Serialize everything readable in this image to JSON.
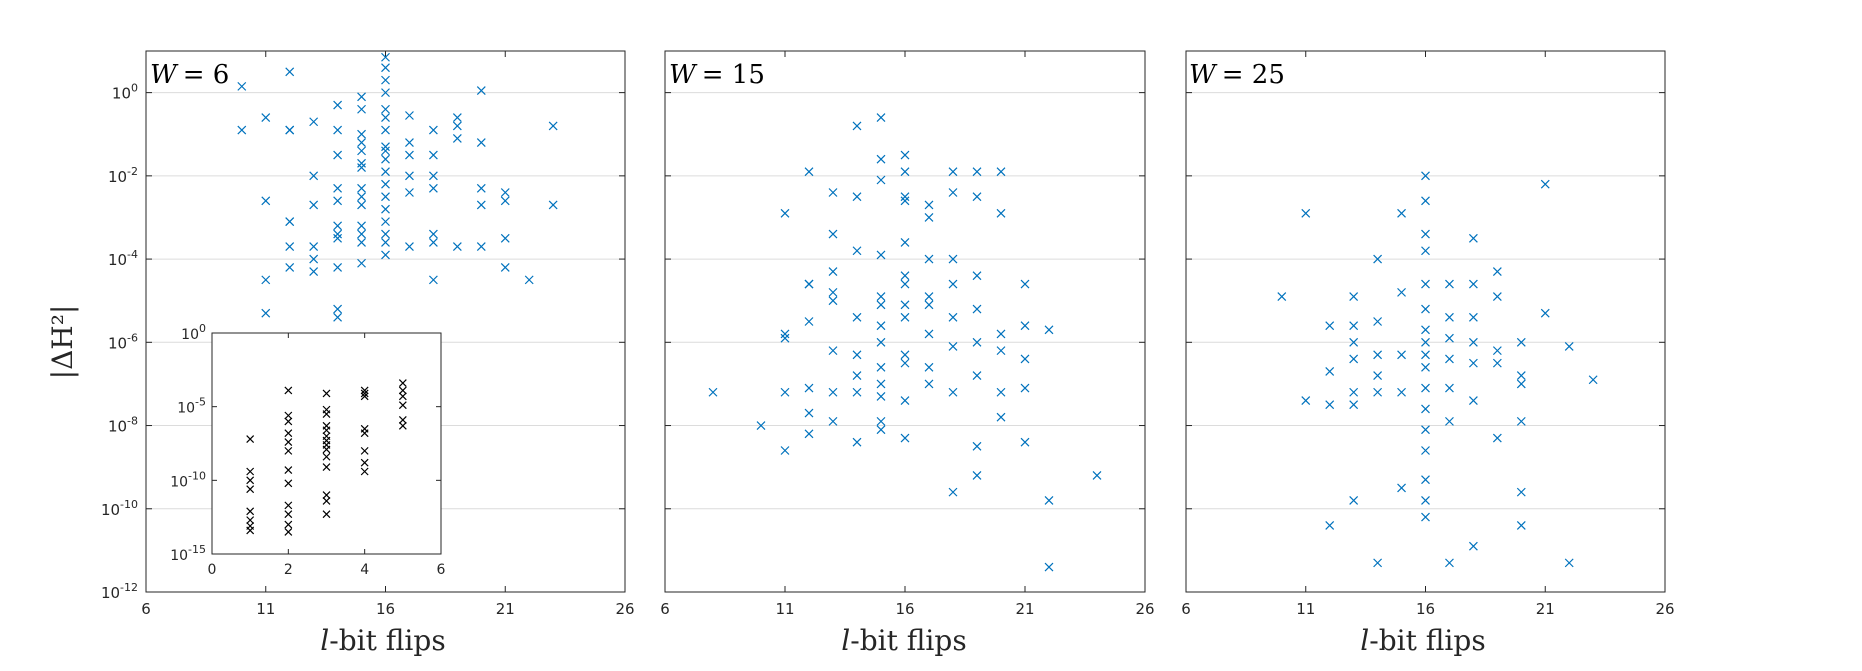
{
  "chart_data": [
    {
      "type": "scatter",
      "title": "W = 6",
      "title_var": "W",
      "title_value": "= 6",
      "xlabel": "-bit flips",
      "xlabel_var": "l",
      "ylabel": "|ΔH²|",
      "xlim": [
        6,
        26
      ],
      "ylim_log10": [
        -12,
        1
      ],
      "yscale": "log",
      "xticks": [
        "6",
        "11",
        "16",
        "21",
        "26"
      ],
      "yticks": [
        {
          "base": "10",
          "exp": "0"
        },
        {
          "base": "10",
          "exp": "-2"
        },
        {
          "base": "10",
          "exp": "-4"
        },
        {
          "base": "10",
          "exp": "-6"
        },
        {
          "base": "10",
          "exp": "-8"
        },
        {
          "base": "10",
          "exp": "-10"
        },
        {
          "base": "10",
          "exp": "-12"
        }
      ],
      "grid": "horizontal",
      "marker": "x",
      "color": "#0072BD",
      "points_log10": [
        [
          10,
          -0.9
        ],
        [
          10,
          0.15
        ],
        [
          11,
          -0.6
        ],
        [
          11,
          -2.6
        ],
        [
          11,
          -4.5
        ],
        [
          11,
          -5.3
        ],
        [
          12,
          0.5
        ],
        [
          12,
          -0.9
        ],
        [
          12,
          -0.9
        ],
        [
          12,
          -3.1
        ],
        [
          12,
          -3.1
        ],
        [
          12,
          -3.7
        ],
        [
          12,
          -4.2
        ],
        [
          13,
          -0.7
        ],
        [
          13,
          -2
        ],
        [
          13,
          -2.7
        ],
        [
          13,
          -3.7
        ],
        [
          13,
          -4
        ],
        [
          13,
          -4.3
        ],
        [
          14,
          -0.3
        ],
        [
          14,
          -0.9
        ],
        [
          14,
          -1.5
        ],
        [
          14,
          -2.3
        ],
        [
          14,
          -2.6
        ],
        [
          14,
          -3.2
        ],
        [
          14,
          -3.4
        ],
        [
          14,
          -3.5
        ],
        [
          14,
          -4.2
        ],
        [
          14,
          -5.2
        ],
        [
          14,
          -5.4
        ],
        [
          15,
          -0.1
        ],
        [
          15,
          -0.4
        ],
        [
          15,
          -1
        ],
        [
          15,
          -1.2
        ],
        [
          15,
          -1.4
        ],
        [
          15,
          -1.7
        ],
        [
          15,
          -1.8
        ],
        [
          15,
          -2.3
        ],
        [
          15,
          -2.5
        ],
        [
          15,
          -2.7
        ],
        [
          15,
          -3.2
        ],
        [
          15,
          -3.4
        ],
        [
          15,
          -3.6
        ],
        [
          15,
          -4.1
        ],
        [
          16,
          0.85
        ],
        [
          16,
          0.6
        ],
        [
          16,
          0.3
        ],
        [
          16,
          0
        ],
        [
          16,
          -0.4
        ],
        [
          16,
          -0.6
        ],
        [
          16,
          -0.9
        ],
        [
          16,
          -1.3
        ],
        [
          16,
          -1.4
        ],
        [
          16,
          -1.6
        ],
        [
          16,
          -1.9
        ],
        [
          16,
          -2.2
        ],
        [
          16,
          -2.5
        ],
        [
          16,
          -2.8
        ],
        [
          16,
          -3.1
        ],
        [
          16,
          -3.4
        ],
        [
          16,
          -3.6
        ],
        [
          16,
          -3.9
        ],
        [
          17,
          -0.55
        ],
        [
          17,
          -1.2
        ],
        [
          17,
          -1.5
        ],
        [
          17,
          -2
        ],
        [
          17,
          -2.4
        ],
        [
          17,
          -3.7
        ],
        [
          18,
          -0.9
        ],
        [
          18,
          -1.5
        ],
        [
          18,
          -2
        ],
        [
          18,
          -2.3
        ],
        [
          18,
          -3.4
        ],
        [
          18,
          -3.6
        ],
        [
          18,
          -4.5
        ],
        [
          19,
          -0.6
        ],
        [
          19,
          -0.8
        ],
        [
          19,
          -1.1
        ],
        [
          19,
          -3.7
        ],
        [
          20,
          0.05
        ],
        [
          20,
          -1.2
        ],
        [
          20,
          -2.3
        ],
        [
          20,
          -2.7
        ],
        [
          20,
          -3.7
        ],
        [
          21,
          -2.4
        ],
        [
          21,
          -2.6
        ],
        [
          21,
          -3.5
        ],
        [
          21,
          -4.2
        ],
        [
          22,
          -4.5
        ],
        [
          23,
          -0.8
        ],
        [
          23,
          -2.7
        ]
      ],
      "inset": {
        "xlim": [
          0,
          6
        ],
        "ylim_log10": [
          -15,
          0
        ],
        "xticks": [
          "0",
          "2",
          "4",
          "6"
        ],
        "yticks": [
          {
            "base": "10",
            "exp": "0"
          },
          {
            "base": "10",
            "exp": "-5"
          },
          {
            "base": "10",
            "exp": "-10"
          },
          {
            "base": "10",
            "exp": "-15"
          }
        ],
        "color": "#000000",
        "points_log10": [
          [
            1,
            -7.2
          ],
          [
            1,
            -9.4
          ],
          [
            1,
            -10
          ],
          [
            1,
            -10.6
          ],
          [
            1,
            -12.1
          ],
          [
            1,
            -12.7
          ],
          [
            1,
            -13.1
          ],
          [
            1,
            -13.4
          ],
          [
            2,
            -3.9
          ],
          [
            2,
            -5.6
          ],
          [
            2,
            -6
          ],
          [
            2,
            -6.8
          ],
          [
            2,
            -7.4
          ],
          [
            2,
            -8
          ],
          [
            2,
            -9.3
          ],
          [
            2,
            -10.2
          ],
          [
            2,
            -11.7
          ],
          [
            2,
            -12.3
          ],
          [
            2,
            -13
          ],
          [
            2,
            -13.5
          ],
          [
            3,
            -4.1
          ],
          [
            3,
            -5.2
          ],
          [
            3,
            -5.5
          ],
          [
            3,
            -6.3
          ],
          [
            3,
            -6.6
          ],
          [
            3,
            -7
          ],
          [
            3,
            -7.3
          ],
          [
            3,
            -7.6
          ],
          [
            3,
            -7.9
          ],
          [
            3,
            -8.4
          ],
          [
            3,
            -9.1
          ],
          [
            3,
            -11
          ],
          [
            3,
            -11.4
          ],
          [
            3,
            -12.3
          ],
          [
            4,
            -3.9
          ],
          [
            4,
            -4.1
          ],
          [
            4,
            -4.3
          ],
          [
            4,
            -6.5
          ],
          [
            4,
            -6.8
          ],
          [
            4,
            -8
          ],
          [
            4,
            -8.8
          ],
          [
            4,
            -9.4
          ],
          [
            5,
            -3.4
          ],
          [
            5,
            -3.9
          ],
          [
            5,
            -4.3
          ],
          [
            5,
            -4.9
          ],
          [
            5,
            -5.9
          ],
          [
            5,
            -6.3
          ]
        ]
      }
    },
    {
      "type": "scatter",
      "title": "W = 15",
      "title_var": "W",
      "title_value": "= 15",
      "xlabel": "-bit flips",
      "xlabel_var": "l",
      "xlim": [
        6,
        26
      ],
      "ylim_log10": [
        -12,
        1
      ],
      "yscale": "log",
      "xticks": [
        "6",
        "11",
        "16",
        "21",
        "26"
      ],
      "grid": "horizontal",
      "marker": "x",
      "color": "#0072BD",
      "points_log10": [
        [
          8,
          -7.2
        ],
        [
          10,
          -8
        ],
        [
          11,
          -2.9
        ],
        [
          11,
          -5.8
        ],
        [
          11,
          -5.9
        ],
        [
          11,
          -7.2
        ],
        [
          11,
          -8.6
        ],
        [
          12,
          -1.9
        ],
        [
          12,
          -4.6
        ],
        [
          12,
          -4.6
        ],
        [
          12,
          -5.5
        ],
        [
          12,
          -7.1
        ],
        [
          12,
          -7.7
        ],
        [
          12,
          -8.2
        ],
        [
          13,
          -2.4
        ],
        [
          13,
          -3.4
        ],
        [
          13,
          -4.3
        ],
        [
          13,
          -4.8
        ],
        [
          13,
          -5
        ],
        [
          13,
          -6.2
        ],
        [
          13,
          -7.2
        ],
        [
          13,
          -7.9
        ],
        [
          14,
          -0.8
        ],
        [
          14,
          -2.5
        ],
        [
          14,
          -3.8
        ],
        [
          14,
          -5.4
        ],
        [
          14,
          -6.3
        ],
        [
          14,
          -6.8
        ],
        [
          14,
          -7.2
        ],
        [
          14,
          -8.4
        ],
        [
          15,
          -0.6
        ],
        [
          15,
          -1.6
        ],
        [
          15,
          -2.1
        ],
        [
          15,
          -3.9
        ],
        [
          15,
          -4.9
        ],
        [
          15,
          -5.1
        ],
        [
          15,
          -5.6
        ],
        [
          15,
          -6
        ],
        [
          15,
          -6.6
        ],
        [
          15,
          -7
        ],
        [
          15,
          -7.3
        ],
        [
          15,
          -7.9
        ],
        [
          15,
          -8.1
        ],
        [
          16,
          -1.5
        ],
        [
          16,
          -1.9
        ],
        [
          16,
          -2.5
        ],
        [
          16,
          -2.6
        ],
        [
          16,
          -3.6
        ],
        [
          16,
          -4.4
        ],
        [
          16,
          -4.6
        ],
        [
          16,
          -5.1
        ],
        [
          16,
          -5.4
        ],
        [
          16,
          -6.3
        ],
        [
          16,
          -6.5
        ],
        [
          16,
          -7.4
        ],
        [
          16,
          -8.3
        ],
        [
          17,
          -2.7
        ],
        [
          17,
          -3
        ],
        [
          17,
          -4
        ],
        [
          17,
          -4.9
        ],
        [
          17,
          -5.1
        ],
        [
          17,
          -5.8
        ],
        [
          17,
          -6.6
        ],
        [
          17,
          -7
        ],
        [
          18,
          -1.9
        ],
        [
          18,
          -2.4
        ],
        [
          18,
          -4
        ],
        [
          18,
          -4.6
        ],
        [
          18,
          -5.4
        ],
        [
          18,
          -6.1
        ],
        [
          18,
          -7.2
        ],
        [
          18,
          -9.6
        ],
        [
          19,
          -1.9
        ],
        [
          19,
          -2.5
        ],
        [
          19,
          -4.4
        ],
        [
          19,
          -5.2
        ],
        [
          19,
          -6
        ],
        [
          19,
          -6.8
        ],
        [
          19,
          -8.5
        ],
        [
          19,
          -9.2
        ],
        [
          20,
          -1.9
        ],
        [
          20,
          -2.9
        ],
        [
          20,
          -5.8
        ],
        [
          20,
          -6.2
        ],
        [
          20,
          -7.2
        ],
        [
          20,
          -7.8
        ],
        [
          21,
          -4.6
        ],
        [
          21,
          -5.6
        ],
        [
          21,
          -6.4
        ],
        [
          21,
          -7.1
        ],
        [
          21,
          -8.4
        ],
        [
          22,
          -5.7
        ],
        [
          22,
          -9.8
        ],
        [
          22,
          -11.4
        ],
        [
          24,
          -9.2
        ]
      ]
    },
    {
      "type": "scatter",
      "title": "W = 25",
      "title_var": "W",
      "title_value": "= 25",
      "xlabel": "-bit flips",
      "xlabel_var": "l",
      "xlim": [
        6,
        26
      ],
      "ylim_log10": [
        -12,
        1
      ],
      "yscale": "log",
      "xticks": [
        "6",
        "11",
        "16",
        "21",
        "26"
      ],
      "grid": "horizontal",
      "marker": "x",
      "color": "#0072BD",
      "points_log10": [
        [
          10,
          -4.9
        ],
        [
          11,
          -2.9
        ],
        [
          11,
          -7.4
        ],
        [
          12,
          -5.6
        ],
        [
          12,
          -6.7
        ],
        [
          12,
          -7.5
        ],
        [
          12,
          -10.4
        ],
        [
          13,
          -4.9
        ],
        [
          13,
          -5.6
        ],
        [
          13,
          -6
        ],
        [
          13,
          -6.4
        ],
        [
          13,
          -7.2
        ],
        [
          13,
          -7.5
        ],
        [
          13,
          -9.8
        ],
        [
          14,
          -4
        ],
        [
          14,
          -5.5
        ],
        [
          14,
          -6.3
        ],
        [
          14,
          -6.8
        ],
        [
          14,
          -7.2
        ],
        [
          14,
          -11.3
        ],
        [
          15,
          -2.9
        ],
        [
          15,
          -4.8
        ],
        [
          15,
          -6.3
        ],
        [
          15,
          -7.2
        ],
        [
          15,
          -9.5
        ],
        [
          16,
          -2
        ],
        [
          16,
          -2.6
        ],
        [
          16,
          -3.4
        ],
        [
          16,
          -3.8
        ],
        [
          16,
          -4.6
        ],
        [
          16,
          -5.2
        ],
        [
          16,
          -5.7
        ],
        [
          16,
          -6
        ],
        [
          16,
          -6.3
        ],
        [
          16,
          -6.6
        ],
        [
          16,
          -7.1
        ],
        [
          16,
          -7.6
        ],
        [
          16,
          -8.1
        ],
        [
          16,
          -8.6
        ],
        [
          16,
          -9.3
        ],
        [
          16,
          -9.8
        ],
        [
          16,
          -10.2
        ],
        [
          17,
          -4.6
        ],
        [
          17,
          -5.4
        ],
        [
          17,
          -5.9
        ],
        [
          17,
          -6.4
        ],
        [
          17,
          -7.1
        ],
        [
          17,
          -7.9
        ],
        [
          17,
          -11.3
        ],
        [
          18,
          -3.5
        ],
        [
          18,
          -4.6
        ],
        [
          18,
          -5.4
        ],
        [
          18,
          -6
        ],
        [
          18,
          -6.5
        ],
        [
          18,
          -7.4
        ],
        [
          18,
          -10.9
        ],
        [
          19,
          -4.3
        ],
        [
          19,
          -4.9
        ],
        [
          19,
          -6.2
        ],
        [
          19,
          -6.5
        ],
        [
          19,
          -8.3
        ],
        [
          20,
          -6
        ],
        [
          20,
          -6.8
        ],
        [
          20,
          -7
        ],
        [
          20,
          -7.9
        ],
        [
          20,
          -9.6
        ],
        [
          20,
          -10.4
        ],
        [
          21,
          -2.2
        ],
        [
          21,
          -5.3
        ],
        [
          22,
          -6.1
        ],
        [
          22,
          -11.3
        ],
        [
          23,
          -6.9
        ]
      ]
    }
  ]
}
